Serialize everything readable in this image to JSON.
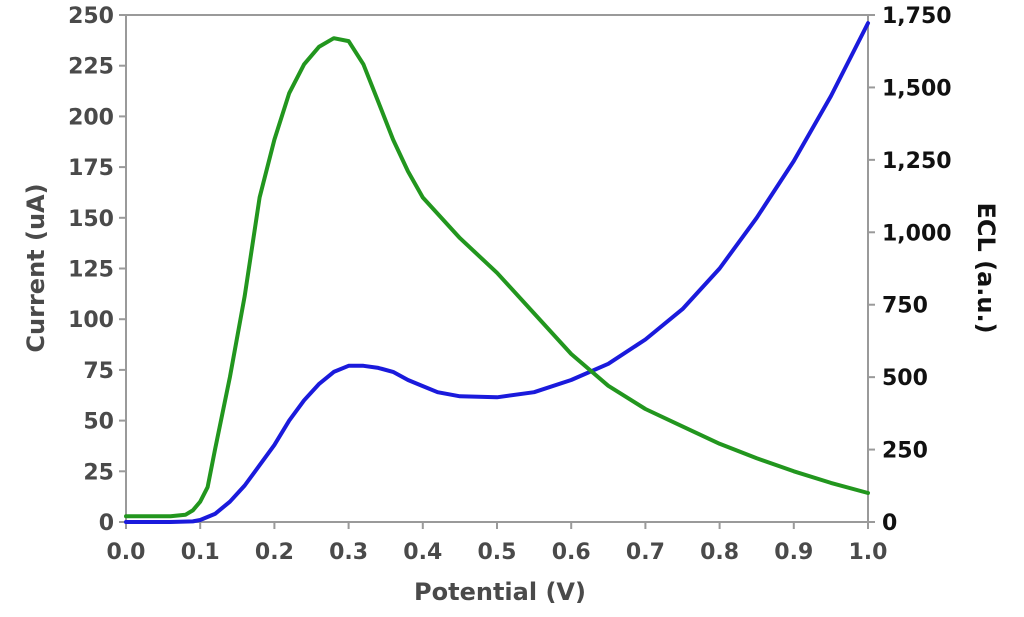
{
  "chart_data": {
    "type": "line",
    "title": "",
    "xlabel": "Potential (V)",
    "ylabel_left": "Current (uA)",
    "ylabel_right": "ECL (a.u.)",
    "xlim": [
      0.0,
      1.0
    ],
    "ylim_left": [
      0,
      250
    ],
    "ylim_right": [
      0,
      1750
    ],
    "x_ticks": [
      "0.0",
      "0.1",
      "0.2",
      "0.3",
      "0.4",
      "0.5",
      "0.6",
      "0.7",
      "0.8",
      "0.9",
      "1.0"
    ],
    "y_left_ticks": [
      "0",
      "25",
      "50",
      "75",
      "100",
      "125",
      "150",
      "175",
      "200",
      "225",
      "250"
    ],
    "y_right_ticks": [
      "0",
      "250",
      "500",
      "750",
      "1,000",
      "1,250",
      "1,500",
      "1,750"
    ],
    "grid": false,
    "legend": "none",
    "series": [
      {
        "axis": "left",
        "color": "#1a1adc",
        "points": [
          [
            0.0,
            0
          ],
          [
            0.06,
            0
          ],
          [
            0.09,
            0.3
          ],
          [
            0.1,
            1
          ],
          [
            0.12,
            4
          ],
          [
            0.14,
            10
          ],
          [
            0.16,
            18
          ],
          [
            0.18,
            28
          ],
          [
            0.2,
            38
          ],
          [
            0.22,
            50
          ],
          [
            0.24,
            60
          ],
          [
            0.26,
            68
          ],
          [
            0.28,
            74
          ],
          [
            0.3,
            77
          ],
          [
            0.32,
            77
          ],
          [
            0.34,
            76
          ],
          [
            0.36,
            74
          ],
          [
            0.38,
            70
          ],
          [
            0.4,
            67
          ],
          [
            0.42,
            64
          ],
          [
            0.45,
            62
          ],
          [
            0.5,
            61.5
          ],
          [
            0.55,
            64
          ],
          [
            0.6,
            70
          ],
          [
            0.65,
            78
          ],
          [
            0.7,
            90
          ],
          [
            0.75,
            105
          ],
          [
            0.8,
            125
          ],
          [
            0.85,
            150
          ],
          [
            0.9,
            178
          ],
          [
            0.95,
            210
          ],
          [
            1.0,
            246
          ]
        ]
      },
      {
        "axis": "right",
        "color": "#22961e",
        "points": [
          [
            0.0,
            20
          ],
          [
            0.06,
            20
          ],
          [
            0.08,
            25
          ],
          [
            0.09,
            40
          ],
          [
            0.1,
            70
          ],
          [
            0.11,
            120
          ],
          [
            0.12,
            250
          ],
          [
            0.14,
            500
          ],
          [
            0.16,
            780
          ],
          [
            0.18,
            1120
          ],
          [
            0.2,
            1320
          ],
          [
            0.22,
            1480
          ],
          [
            0.24,
            1580
          ],
          [
            0.26,
            1640
          ],
          [
            0.28,
            1670
          ],
          [
            0.3,
            1660
          ],
          [
            0.32,
            1580
          ],
          [
            0.34,
            1450
          ],
          [
            0.36,
            1320
          ],
          [
            0.38,
            1210
          ],
          [
            0.4,
            1120
          ],
          [
            0.45,
            980
          ],
          [
            0.5,
            860
          ],
          [
            0.55,
            720
          ],
          [
            0.6,
            580
          ],
          [
            0.65,
            470
          ],
          [
            0.7,
            390
          ],
          [
            0.75,
            330
          ],
          [
            0.8,
            270
          ],
          [
            0.85,
            220
          ],
          [
            0.9,
            175
          ],
          [
            0.95,
            135
          ],
          [
            1.0,
            100
          ]
        ]
      }
    ]
  }
}
